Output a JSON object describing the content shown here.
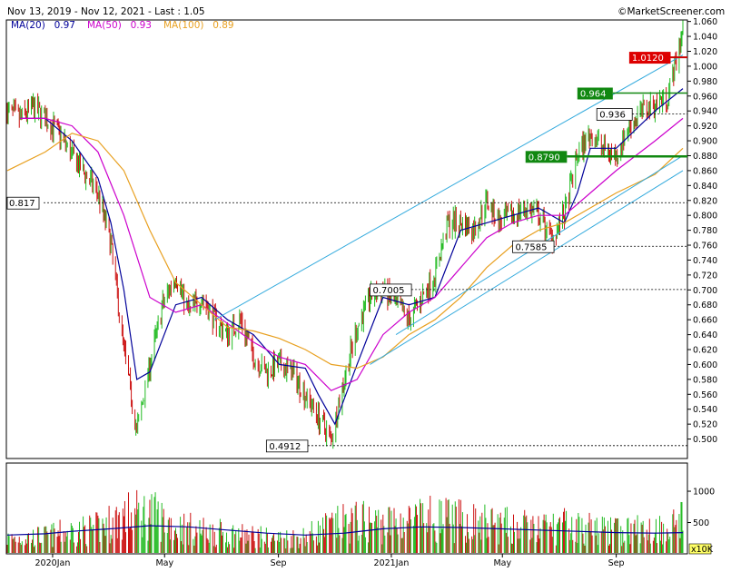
{
  "header": {
    "range": "Nov 13, 2019 - Nov 12, 2021 - Last : 1.05",
    "brand": "©MarketScreener.com"
  },
  "legend": [
    {
      "label": "MA(20)",
      "value": "0.97",
      "color": "#000099"
    },
    {
      "label": "MA(50)",
      "value": "0.93",
      "color": "#cc00cc"
    },
    {
      "label": "MA(100)",
      "value": "0.89",
      "color": "#e8a020"
    }
  ],
  "volume_unit": "x10K",
  "chart_data": {
    "type": "line",
    "title": "",
    "x_tick_labels": [
      "2020Jan",
      "May",
      "Sep",
      "2021Jan",
      "May",
      "Sep"
    ],
    "ylim": [
      0.48,
      1.065
    ],
    "y_ticks": [
      "1.060",
      "1.040",
      "1.020",
      "1.000",
      "0.980",
      "0.960",
      "0.940",
      "0.920",
      "0.900",
      "0.880",
      "0.860",
      "0.840",
      "0.820",
      "0.800",
      "0.780",
      "0.760",
      "0.740",
      "0.720",
      "0.700",
      "0.680",
      "0.660",
      "0.640",
      "0.620",
      "0.600",
      "0.580",
      "0.560",
      "0.540",
      "0.520",
      "0.500"
    ],
    "volume_ylim": [
      0,
      1450
    ],
    "volume_ticks": [
      "1000",
      "500"
    ],
    "price_path": [
      [
        "2019-11-13",
        0.94
      ],
      [
        "2019-11-27",
        0.93
      ],
      [
        "2019-12-11",
        0.945
      ],
      [
        "2019-12-24",
        0.93
      ],
      [
        "2020-01-08",
        0.91
      ],
      [
        "2020-01-22",
        0.88
      ],
      [
        "2020-02-05",
        0.855
      ],
      [
        "2020-02-19",
        0.83
      ],
      [
        "2020-03-04",
        0.76
      ],
      [
        "2020-03-18",
        0.62
      ],
      [
        "2020-04-01",
        0.51
      ],
      [
        "2020-04-15",
        0.6
      ],
      [
        "2020-04-29",
        0.68
      ],
      [
        "2020-05-13",
        0.72
      ],
      [
        "2020-05-27",
        0.67
      ],
      [
        "2020-06-10",
        0.69
      ],
      [
        "2020-06-24",
        0.66
      ],
      [
        "2020-07-08",
        0.64
      ],
      [
        "2020-07-22",
        0.66
      ],
      [
        "2020-08-05",
        0.61
      ],
      [
        "2020-08-19",
        0.59
      ],
      [
        "2020-09-02",
        0.6
      ],
      [
        "2020-09-16",
        0.59
      ],
      [
        "2020-09-30",
        0.56
      ],
      [
        "2020-10-14",
        0.53
      ],
      [
        "2020-10-28",
        0.5
      ],
      [
        "2020-11-11",
        0.58
      ],
      [
        "2020-11-25",
        0.65
      ],
      [
        "2020-12-09",
        0.69
      ],
      [
        "2020-12-23",
        0.7
      ],
      [
        "2021-01-06",
        0.68
      ],
      [
        "2021-01-20",
        0.66
      ],
      [
        "2021-02-03",
        0.69
      ],
      [
        "2021-02-17",
        0.72
      ],
      [
        "2021-03-03",
        0.79
      ],
      [
        "2021-03-17",
        0.79
      ],
      [
        "2021-03-31",
        0.78
      ],
      [
        "2021-04-14",
        0.82
      ],
      [
        "2021-04-28",
        0.79
      ],
      [
        "2021-05-12",
        0.8
      ],
      [
        "2021-05-26",
        0.81
      ],
      [
        "2021-06-09",
        0.8
      ],
      [
        "2021-06-23",
        0.77
      ],
      [
        "2021-07-07",
        0.8
      ],
      [
        "2021-07-21",
        0.88
      ],
      [
        "2021-08-04",
        0.91
      ],
      [
        "2021-08-18",
        0.89
      ],
      [
        "2021-09-01",
        0.88
      ],
      [
        "2021-09-15",
        0.92
      ],
      [
        "2021-09-29",
        0.94
      ],
      [
        "2021-10-13",
        0.95
      ],
      [
        "2021-10-27",
        0.96
      ],
      [
        "2021-11-12",
        1.05
      ]
    ],
    "series": [
      {
        "name": "MA(20)",
        "color": "#000099",
        "values": [
          [
            "2019-11-27",
            0.93
          ],
          [
            "2019-12-24",
            0.93
          ],
          [
            "2020-01-22",
            0.9
          ],
          [
            "2020-02-19",
            0.85
          ],
          [
            "2020-03-04",
            0.79
          ],
          [
            "2020-03-18",
            0.7
          ],
          [
            "2020-04-01",
            0.58
          ],
          [
            "2020-04-15",
            0.59
          ],
          [
            "2020-05-13",
            0.68
          ],
          [
            "2020-06-10",
            0.69
          ],
          [
            "2020-07-08",
            0.66
          ],
          [
            "2020-08-05",
            0.64
          ],
          [
            "2020-09-02",
            0.6
          ],
          [
            "2020-09-30",
            0.595
          ],
          [
            "2020-10-14",
            0.56
          ],
          [
            "2020-11-01",
            0.52
          ],
          [
            "2020-11-25",
            0.6
          ],
          [
            "2020-12-23",
            0.69
          ],
          [
            "2021-01-20",
            0.68
          ],
          [
            "2021-02-17",
            0.69
          ],
          [
            "2021-03-17",
            0.78
          ],
          [
            "2021-04-14",
            0.79
          ],
          [
            "2021-05-12",
            0.8
          ],
          [
            "2021-06-09",
            0.81
          ],
          [
            "2021-07-07",
            0.79
          ],
          [
            "2021-07-21",
            0.83
          ],
          [
            "2021-08-04",
            0.89
          ],
          [
            "2021-09-01",
            0.89
          ],
          [
            "2021-10-13",
            0.94
          ],
          [
            "2021-11-12",
            0.97
          ]
        ]
      },
      {
        "name": "MA(50)",
        "color": "#cc00cc",
        "values": [
          [
            "2019-11-27",
            0.93
          ],
          [
            "2019-12-24",
            0.93
          ],
          [
            "2020-01-22",
            0.92
          ],
          [
            "2020-02-19",
            0.885
          ],
          [
            "2020-03-18",
            0.8
          ],
          [
            "2020-04-15",
            0.69
          ],
          [
            "2020-05-13",
            0.67
          ],
          [
            "2020-06-10",
            0.68
          ],
          [
            "2020-07-08",
            0.655
          ],
          [
            "2020-08-05",
            0.63
          ],
          [
            "2020-09-02",
            0.61
          ],
          [
            "2020-09-30",
            0.6
          ],
          [
            "2020-10-28",
            0.565
          ],
          [
            "2020-11-25",
            0.58
          ],
          [
            "2020-12-23",
            0.64
          ],
          [
            "2021-01-20",
            0.67
          ],
          [
            "2021-02-17",
            0.69
          ],
          [
            "2021-03-17",
            0.73
          ],
          [
            "2021-04-14",
            0.77
          ],
          [
            "2021-05-12",
            0.79
          ],
          [
            "2021-06-09",
            0.8
          ],
          [
            "2021-07-07",
            0.8
          ],
          [
            "2021-08-04",
            0.83
          ],
          [
            "2021-09-01",
            0.86
          ],
          [
            "2021-10-13",
            0.9
          ],
          [
            "2021-11-12",
            0.93
          ]
        ]
      },
      {
        "name": "MA(100)",
        "color": "#e8a020",
        "values": [
          [
            "2019-11-13",
            0.86
          ],
          [
            "2019-12-24",
            0.885
          ],
          [
            "2020-01-22",
            0.91
          ],
          [
            "2020-02-19",
            0.9
          ],
          [
            "2020-03-18",
            0.86
          ],
          [
            "2020-04-15",
            0.78
          ],
          [
            "2020-05-13",
            0.71
          ],
          [
            "2020-06-10",
            0.68
          ],
          [
            "2020-07-08",
            0.65
          ],
          [
            "2020-08-05",
            0.645
          ],
          [
            "2020-09-02",
            0.635
          ],
          [
            "2020-09-30",
            0.62
          ],
          [
            "2020-10-28",
            0.6
          ],
          [
            "2020-11-25",
            0.595
          ],
          [
            "2020-12-23",
            0.61
          ],
          [
            "2021-01-20",
            0.64
          ],
          [
            "2021-02-17",
            0.66
          ],
          [
            "2021-03-17",
            0.69
          ],
          [
            "2021-04-14",
            0.73
          ],
          [
            "2021-05-12",
            0.76
          ],
          [
            "2021-06-09",
            0.78
          ],
          [
            "2021-07-07",
            0.79
          ],
          [
            "2021-08-04",
            0.81
          ],
          [
            "2021-09-01",
            0.83
          ],
          [
            "2021-10-13",
            0.855
          ],
          [
            "2021-11-12",
            0.89
          ]
        ]
      }
    ],
    "volume_path": [
      [
        "2019-11-13",
        300
      ],
      [
        "2019-12-24",
        350
      ],
      [
        "2020-01-22",
        450
      ],
      [
        "2020-02-19",
        500
      ],
      [
        "2020-03-18",
        750
      ],
      [
        "2020-04-15",
        800
      ],
      [
        "2020-05-13",
        550
      ],
      [
        "2020-06-10",
        450
      ],
      [
        "2020-07-08",
        400
      ],
      [
        "2020-08-05",
        350
      ],
      [
        "2020-09-02",
        300
      ],
      [
        "2020-09-30",
        350
      ],
      [
        "2020-10-28",
        550
      ],
      [
        "2020-11-25",
        650
      ],
      [
        "2020-12-23",
        600
      ],
      [
        "2021-01-20",
        650
      ],
      [
        "2021-02-17",
        700
      ],
      [
        "2021-03-17",
        650
      ],
      [
        "2021-04-14",
        600
      ],
      [
        "2021-05-12",
        550
      ],
      [
        "2021-06-09",
        500
      ],
      [
        "2021-07-07",
        550
      ],
      [
        "2021-08-04",
        500
      ],
      [
        "2021-09-01",
        450
      ],
      [
        "2021-10-13",
        500
      ],
      [
        "2021-11-12",
        650
      ]
    ],
    "volume_ma": [
      [
        "2019-11-13",
        300
      ],
      [
        "2019-12-24",
        320
      ],
      [
        "2020-01-22",
        360
      ],
      [
        "2020-03-04",
        400
      ],
      [
        "2020-04-15",
        450
      ],
      [
        "2020-05-27",
        430
      ],
      [
        "2020-07-08",
        380
      ],
      [
        "2020-08-19",
        330
      ],
      [
        "2020-09-30",
        300
      ],
      [
        "2020-11-11",
        330
      ],
      [
        "2020-12-23",
        400
      ],
      [
        "2021-02-03",
        430
      ],
      [
        "2021-03-17",
        420
      ],
      [
        "2021-04-28",
        400
      ],
      [
        "2021-06-09",
        380
      ],
      [
        "2021-07-21",
        360
      ],
      [
        "2021-09-01",
        340
      ],
      [
        "2021-10-13",
        330
      ],
      [
        "2021-11-12",
        340
      ]
    ],
    "levels": [
      {
        "label": "1.0120",
        "value": 1.012,
        "style": "red",
        "from": "2021-09-15"
      },
      {
        "label": "0.964",
        "value": 0.964,
        "style": "green",
        "from": "2021-07-21"
      },
      {
        "label": "0.936",
        "value": 0.936,
        "style": "box",
        "from": "2021-08-11"
      },
      {
        "label": "0.8790",
        "value": 0.879,
        "style": "green-thick",
        "from": "2021-05-26"
      },
      {
        "label": "0.817",
        "value": 0.817,
        "style": "dashed-axis",
        "from": "2019-11-13"
      },
      {
        "label": "0.7585",
        "value": 0.7585,
        "style": "box",
        "from": "2021-05-12"
      },
      {
        "label": "0.7005",
        "value": 0.7005,
        "style": "box",
        "from": "2020-12-09"
      },
      {
        "label": "0.4912",
        "value": 0.4912,
        "style": "box",
        "from": "2020-08-19"
      }
    ],
    "channel_lines": [
      {
        "start": [
          "2020-06-24",
          0.66
        ],
        "end": [
          "2021-11-12",
          1.015
        ]
      },
      {
        "start": [
          "2020-12-09",
          0.6
        ],
        "end": [
          "2021-11-12",
          0.86
        ]
      },
      {
        "start": [
          "2021-01-06",
          0.64
        ],
        "end": [
          "2021-11-12",
          0.88
        ]
      }
    ]
  }
}
